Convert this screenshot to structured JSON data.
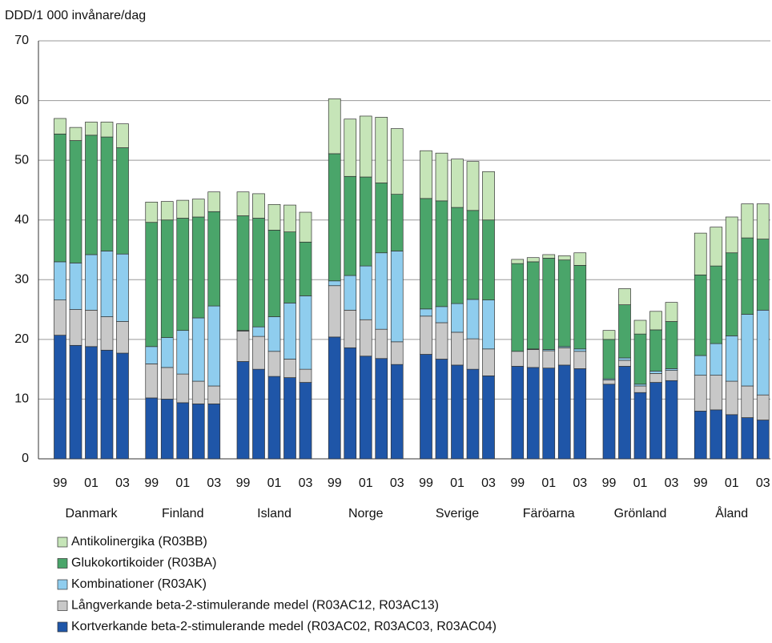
{
  "chart_data": {
    "type": "stacked_bar",
    "y_label": "DDD/1 000 invånare/dag",
    "ylim": [
      0,
      70
    ],
    "yticks": [
      0,
      10,
      20,
      30,
      40,
      50,
      60,
      70
    ],
    "grid": true,
    "groups": [
      "Danmark",
      "Finland",
      "Island",
      "Norge",
      "Sverige",
      "Färöarna",
      "Grönland",
      "Åland"
    ],
    "categories": [
      "99",
      null,
      "01",
      null,
      "03",
      "99",
      null,
      "01",
      null,
      "03",
      "99",
      null,
      "01",
      null,
      "03",
      "99",
      null,
      "01",
      null,
      "03",
      "99",
      null,
      "01",
      null,
      "03",
      "99",
      null,
      "01",
      null,
      "03",
      "99",
      null,
      "01",
      null,
      "03",
      "99",
      null,
      "01",
      null,
      "03"
    ],
    "series": [
      {
        "name": "Kortverkande beta-2-stimulerande medel (R03AC02, R03AC03, R03AC04)",
        "color": "#1f56a8",
        "values": [
          20.7,
          19.0,
          18.8,
          18.2,
          17.7,
          10.2,
          10.0,
          9.4,
          9.2,
          9.2,
          16.3,
          15.0,
          13.8,
          13.6,
          12.8,
          20.4,
          18.6,
          17.2,
          16.8,
          15.8,
          17.5,
          16.7,
          15.7,
          15.0,
          13.9,
          15.5,
          15.3,
          15.2,
          15.7,
          15.1,
          12.5,
          15.5,
          11.1,
          12.8,
          13.1,
          8.0,
          8.2,
          7.4,
          6.9,
          6.5
        ]
      },
      {
        "name": "Långverkande beta-2-stimulerande medel (R03AC12, R03AC13)",
        "color": "#c8c8c8",
        "values": [
          5.9,
          6.0,
          6.1,
          5.6,
          5.3,
          5.7,
          5.3,
          4.8,
          3.8,
          3.0,
          5.1,
          5.5,
          4.2,
          3.1,
          2.2,
          8.6,
          6.3,
          6.1,
          4.9,
          3.8,
          6.4,
          6.1,
          5.5,
          5.1,
          4.5,
          2.5,
          3.0,
          2.9,
          2.9,
          2.9,
          0.7,
          1.0,
          1.1,
          1.5,
          1.7,
          6.0,
          5.8,
          5.6,
          5.3,
          4.2
        ]
      },
      {
        "name": "Kombinationer (R03AK)",
        "color": "#8fcdee",
        "values": [
          6.4,
          7.8,
          9.3,
          11.0,
          11.3,
          2.9,
          5.0,
          7.3,
          10.6,
          13.4,
          0.1,
          1.6,
          5.8,
          9.4,
          12.3,
          0.8,
          5.8,
          9.0,
          12.8,
          15.2,
          1.2,
          2.7,
          4.8,
          6.6,
          8.2,
          0,
          0.1,
          0.2,
          0.2,
          0.4,
          0.2,
          0.4,
          0.3,
          0.4,
          0.3,
          3.3,
          5.3,
          7.6,
          12.0,
          14.2
        ]
      },
      {
        "name": "Glukokortikoider (R03BA)",
        "color": "#4aa56a",
        "values": [
          21.4,
          20.5,
          20.0,
          19.1,
          17.8,
          20.8,
          19.7,
          18.8,
          16.9,
          15.8,
          19.2,
          18.2,
          14.5,
          11.9,
          9.0,
          21.3,
          16.6,
          14.9,
          11.7,
          9.5,
          18.5,
          17.7,
          16.1,
          14.9,
          13.4,
          14.7,
          14.6,
          15.3,
          14.5,
          14.0,
          6.6,
          8.9,
          8.4,
          6.9,
          7.9,
          13.5,
          13.0,
          13.9,
          12.8,
          11.9
        ]
      },
      {
        "name": "Antikolinergika (R03BB)",
        "color": "#c6e5b8",
        "values": [
          2.6,
          2.2,
          2.2,
          2.5,
          4.0,
          3.4,
          3.1,
          3.0,
          3.0,
          3.3,
          4.0,
          4.1,
          4.3,
          4.5,
          5.0,
          9.2,
          9.6,
          10.2,
          11.0,
          11.0,
          8.0,
          8.0,
          8.1,
          8.2,
          8.1,
          0.7,
          0.7,
          0.6,
          0.7,
          2.1,
          1.5,
          2.7,
          2.3,
          3.1,
          3.2,
          7.0,
          6.5,
          6.0,
          5.7,
          5.9
        ]
      }
    ]
  }
}
